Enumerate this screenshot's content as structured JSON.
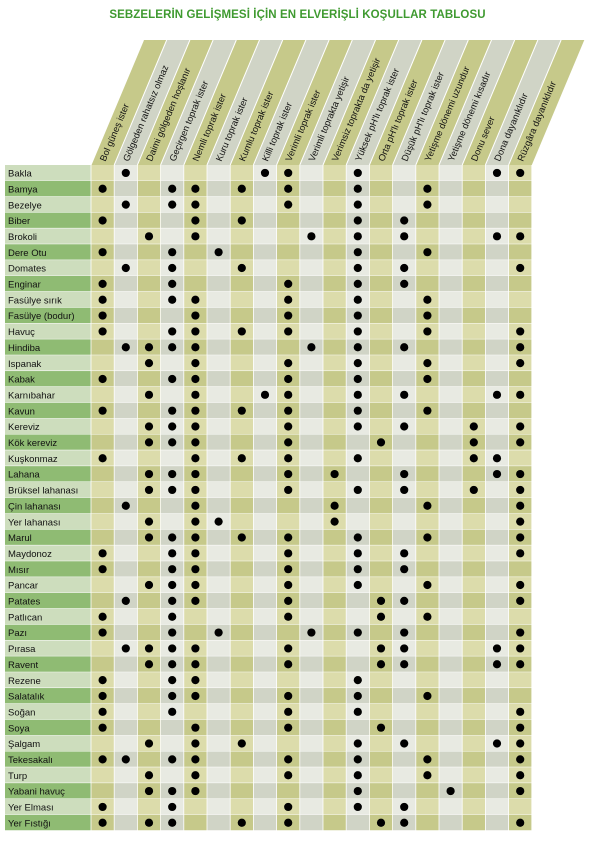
{
  "title": "SEBZELERİN GELİŞMESİ İÇİN EN ELVERİŞLİ KOŞULLAR TABLOSU",
  "colors": {
    "title": "#3f9a30",
    "olive": "#c6c98a",
    "green_dark": "#8fbb73",
    "green_light": "#cdddbd",
    "grey_dark": "#d0d4c6",
    "grey_light": "#e8eae2",
    "dot": "#000000"
  },
  "columns": [
    "Bol güneş ister",
    "Gölgeden rahatsız olmaz",
    "Daimi gölgeden hoşlanır",
    "Geçirgen toprak ister",
    "Nemli toprak ister",
    "Kuru toprak ister",
    "Kumlu toprak ister",
    "Killi toprak ister",
    "Verimli toprak ister",
    "Verimli toprakta yetişir",
    "Verimsiz toprakta da yetişir",
    "Yüksek pH'lı toprak ister",
    "Orta pH'lı toprak ister",
    "Düşük pH'lı toprak ister",
    "Yetişme dönemi uzundur",
    "Yetişme dönemi kısadır",
    "Donu sever",
    "Dona dayanıklıdır",
    "Rüzgâra dayanıklıdır"
  ],
  "rows": [
    {
      "name": "Bakla",
      "cells": [
        0,
        1,
        0,
        0,
        0,
        0,
        0,
        1,
        1,
        0,
        0,
        1,
        0,
        0,
        0,
        0,
        0,
        1,
        1
      ]
    },
    {
      "name": "Bamya",
      "cells": [
        1,
        0,
        0,
        1,
        1,
        0,
        1,
        0,
        1,
        0,
        0,
        1,
        0,
        0,
        1,
        0,
        0,
        0,
        0
      ]
    },
    {
      "name": "Bezelye",
      "cells": [
        0,
        1,
        0,
        1,
        1,
        0,
        0,
        0,
        1,
        0,
        0,
        1,
        0,
        0,
        1,
        0,
        0,
        0,
        0
      ]
    },
    {
      "name": "Biber",
      "cells": [
        1,
        0,
        0,
        0,
        1,
        0,
        1,
        0,
        0,
        0,
        0,
        1,
        0,
        1,
        0,
        0,
        0,
        0,
        0
      ]
    },
    {
      "name": "Brokoli",
      "cells": [
        0,
        0,
        1,
        0,
        1,
        0,
        0,
        0,
        0,
        1,
        0,
        1,
        0,
        1,
        0,
        0,
        0,
        1,
        1
      ]
    },
    {
      "name": "Dere Otu",
      "cells": [
        1,
        0,
        0,
        1,
        0,
        1,
        0,
        0,
        0,
        0,
        0,
        1,
        0,
        0,
        1,
        0,
        0,
        0,
        0
      ]
    },
    {
      "name": "Domates",
      "cells": [
        0,
        1,
        0,
        1,
        0,
        0,
        1,
        0,
        0,
        0,
        0,
        1,
        0,
        1,
        0,
        0,
        0,
        0,
        1
      ]
    },
    {
      "name": "Enginar",
      "cells": [
        1,
        0,
        0,
        1,
        0,
        0,
        0,
        0,
        1,
        0,
        0,
        1,
        0,
        1,
        0,
        0,
        0,
        0,
        0
      ]
    },
    {
      "name": "Fasülye sırık",
      "cells": [
        1,
        0,
        0,
        1,
        1,
        0,
        0,
        0,
        1,
        0,
        0,
        1,
        0,
        0,
        1,
        0,
        0,
        0,
        0
      ]
    },
    {
      "name": "Fasülye (bodur)",
      "cells": [
        1,
        0,
        0,
        0,
        1,
        0,
        0,
        0,
        1,
        0,
        0,
        1,
        0,
        0,
        1,
        0,
        0,
        0,
        0
      ]
    },
    {
      "name": "Havuç",
      "cells": [
        1,
        0,
        0,
        1,
        1,
        0,
        1,
        0,
        1,
        0,
        0,
        1,
        0,
        0,
        1,
        0,
        0,
        0,
        1
      ]
    },
    {
      "name": "Hindiba",
      "cells": [
        0,
        1,
        1,
        1,
        1,
        0,
        0,
        0,
        0,
        1,
        0,
        1,
        0,
        1,
        0,
        0,
        0,
        0,
        1
      ]
    },
    {
      "name": "Ispanak",
      "cells": [
        0,
        0,
        1,
        0,
        1,
        0,
        0,
        0,
        1,
        0,
        0,
        1,
        0,
        0,
        1,
        0,
        0,
        0,
        1
      ]
    },
    {
      "name": "Kabak",
      "cells": [
        1,
        0,
        0,
        1,
        1,
        0,
        0,
        0,
        1,
        0,
        0,
        1,
        0,
        0,
        1,
        0,
        0,
        0,
        0
      ]
    },
    {
      "name": "Karnıbahar",
      "cells": [
        0,
        0,
        1,
        0,
        1,
        0,
        0,
        1,
        1,
        0,
        0,
        1,
        0,
        1,
        0,
        0,
        0,
        1,
        1
      ]
    },
    {
      "name": "Kavun",
      "cells": [
        1,
        0,
        0,
        1,
        1,
        0,
        1,
        0,
        1,
        0,
        0,
        1,
        0,
        0,
        1,
        0,
        0,
        0,
        0
      ]
    },
    {
      "name": "Kereviz",
      "cells": [
        0,
        0,
        1,
        1,
        1,
        0,
        0,
        0,
        1,
        0,
        0,
        1,
        0,
        1,
        0,
        0,
        1,
        0,
        1
      ]
    },
    {
      "name": "Kök kereviz",
      "cells": [
        0,
        0,
        1,
        1,
        1,
        0,
        0,
        0,
        1,
        0,
        0,
        0,
        1,
        0,
        0,
        0,
        1,
        0,
        1
      ]
    },
    {
      "name": "Kuşkonmaz",
      "cells": [
        1,
        0,
        0,
        0,
        1,
        0,
        1,
        0,
        1,
        0,
        0,
        1,
        0,
        0,
        0,
        0,
        1,
        1,
        0
      ]
    },
    {
      "name": "Lahana",
      "cells": [
        0,
        0,
        1,
        1,
        1,
        0,
        0,
        0,
        1,
        0,
        1,
        0,
        0,
        1,
        0,
        0,
        0,
        1,
        1
      ]
    },
    {
      "name": "Brüksel lahanası",
      "cells": [
        0,
        0,
        1,
        1,
        1,
        0,
        0,
        0,
        1,
        0,
        0,
        1,
        0,
        1,
        0,
        0,
        1,
        0,
        1
      ]
    },
    {
      "name": "Çin lahanası",
      "cells": [
        0,
        1,
        0,
        0,
        1,
        0,
        0,
        0,
        0,
        0,
        1,
        0,
        0,
        0,
        1,
        0,
        0,
        0,
        1
      ]
    },
    {
      "name": "Yer lahanası",
      "cells": [
        0,
        0,
        1,
        0,
        1,
        1,
        0,
        0,
        0,
        0,
        1,
        0,
        0,
        0,
        0,
        0,
        0,
        0,
        1
      ]
    },
    {
      "name": "Marul",
      "cells": [
        0,
        0,
        1,
        1,
        1,
        0,
        1,
        0,
        1,
        0,
        0,
        1,
        0,
        0,
        1,
        0,
        0,
        0,
        1
      ]
    },
    {
      "name": "Maydonoz",
      "cells": [
        1,
        0,
        0,
        1,
        1,
        0,
        0,
        0,
        1,
        0,
        0,
        1,
        0,
        1,
        0,
        0,
        0,
        0,
        1
      ]
    },
    {
      "name": "Mısır",
      "cells": [
        1,
        0,
        0,
        1,
        1,
        0,
        0,
        0,
        1,
        0,
        0,
        1,
        0,
        1,
        0,
        0,
        0,
        0,
        0
      ]
    },
    {
      "name": "Pancar",
      "cells": [
        0,
        0,
        1,
        1,
        1,
        0,
        0,
        0,
        1,
        0,
        0,
        1,
        0,
        0,
        1,
        0,
        0,
        0,
        1
      ]
    },
    {
      "name": "Patates",
      "cells": [
        0,
        1,
        0,
        1,
        1,
        0,
        0,
        0,
        1,
        0,
        0,
        0,
        1,
        1,
        0,
        0,
        0,
        0,
        1
      ]
    },
    {
      "name": "Patlıcan",
      "cells": [
        1,
        0,
        0,
        1,
        0,
        0,
        0,
        0,
        1,
        0,
        0,
        0,
        1,
        0,
        1,
        0,
        0,
        0,
        0
      ]
    },
    {
      "name": "Pazı",
      "cells": [
        1,
        0,
        0,
        1,
        0,
        1,
        0,
        0,
        0,
        1,
        0,
        1,
        0,
        1,
        0,
        0,
        0,
        0,
        1
      ]
    },
    {
      "name": "Pırasa",
      "cells": [
        0,
        1,
        1,
        1,
        1,
        0,
        0,
        0,
        1,
        0,
        0,
        0,
        1,
        1,
        0,
        0,
        0,
        1,
        1
      ]
    },
    {
      "name": "Ravent",
      "cells": [
        0,
        0,
        1,
        1,
        1,
        0,
        0,
        0,
        1,
        0,
        0,
        0,
        1,
        1,
        0,
        0,
        0,
        1,
        1
      ]
    },
    {
      "name": "Rezene",
      "cells": [
        1,
        0,
        0,
        1,
        1,
        0,
        0,
        0,
        0,
        0,
        0,
        1,
        0,
        0,
        0,
        0,
        0,
        0,
        0
      ]
    },
    {
      "name": "Salatalık",
      "cells": [
        1,
        0,
        0,
        1,
        1,
        0,
        0,
        0,
        1,
        0,
        0,
        1,
        0,
        0,
        1,
        0,
        0,
        0,
        0
      ]
    },
    {
      "name": "Soğan",
      "cells": [
        1,
        0,
        0,
        1,
        0,
        0,
        0,
        0,
        1,
        0,
        0,
        1,
        0,
        0,
        0,
        0,
        0,
        0,
        1
      ]
    },
    {
      "name": "Soya",
      "cells": [
        1,
        0,
        0,
        0,
        1,
        0,
        0,
        0,
        1,
        0,
        0,
        0,
        1,
        0,
        0,
        0,
        0,
        0,
        1
      ]
    },
    {
      "name": "Şalgam",
      "cells": [
        0,
        0,
        1,
        0,
        1,
        0,
        1,
        0,
        0,
        0,
        0,
        1,
        0,
        1,
        0,
        0,
        0,
        1,
        1
      ]
    },
    {
      "name": "Tekesakalı",
      "cells": [
        1,
        1,
        0,
        1,
        1,
        0,
        0,
        0,
        1,
        0,
        0,
        1,
        0,
        0,
        1,
        0,
        0,
        0,
        1
      ]
    },
    {
      "name": "Turp",
      "cells": [
        0,
        0,
        1,
        0,
        1,
        0,
        0,
        0,
        1,
        0,
        0,
        1,
        0,
        0,
        1,
        0,
        0,
        0,
        1
      ]
    },
    {
      "name": "Yabani havuç",
      "cells": [
        0,
        0,
        1,
        1,
        1,
        0,
        0,
        0,
        0,
        0,
        0,
        1,
        0,
        0,
        0,
        1,
        0,
        0,
        1
      ]
    },
    {
      "name": "Yer Elması",
      "cells": [
        1,
        0,
        0,
        1,
        0,
        0,
        0,
        0,
        1,
        0,
        0,
        1,
        0,
        1,
        0,
        0,
        0,
        0,
        0
      ]
    },
    {
      "name": "Yer Fıstığı",
      "cells": [
        1,
        0,
        1,
        1,
        0,
        0,
        1,
        0,
        1,
        0,
        0,
        0,
        1,
        1,
        0,
        0,
        0,
        0,
        1
      ]
    }
  ]
}
